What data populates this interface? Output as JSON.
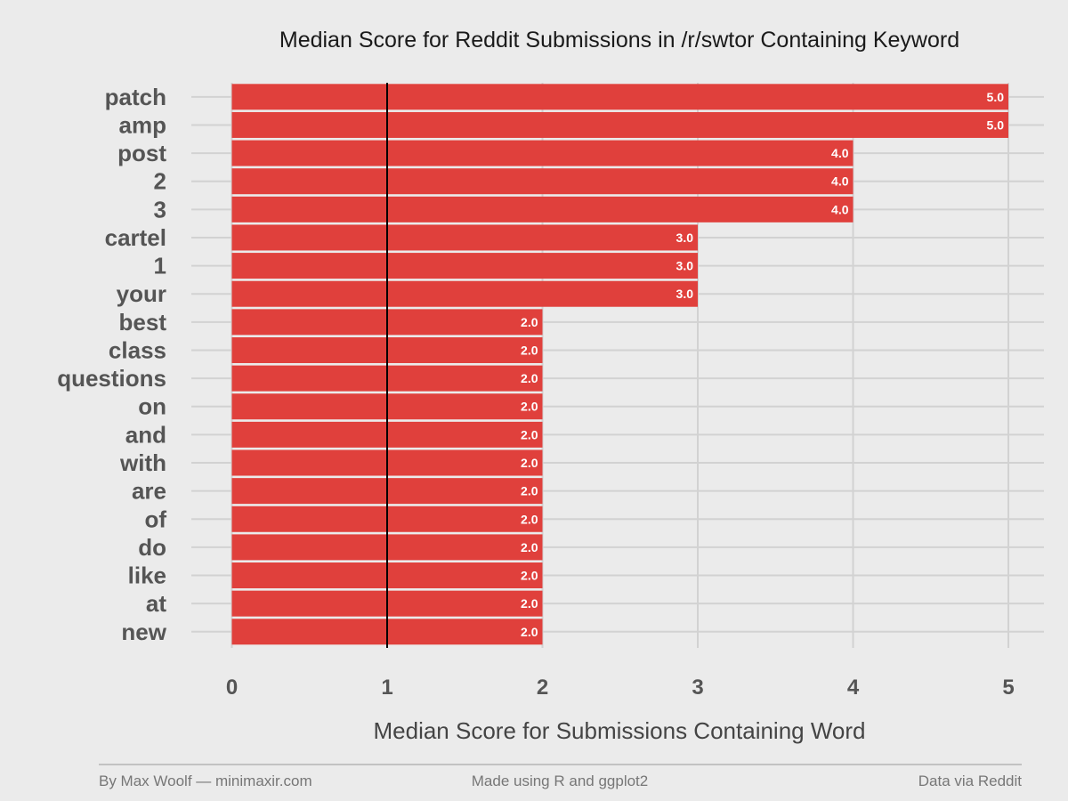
{
  "chart_data": {
    "type": "bar",
    "orientation": "horizontal",
    "title": "Median Score for Reddit Submissions in /r/swtor Containing Keyword",
    "xlabel": "Median Score for Submissions Containing Word",
    "ylabel": "",
    "categories": [
      "patch",
      "amp",
      "post",
      "2",
      "3",
      "cartel",
      "1",
      "your",
      "best",
      "class",
      "questions",
      "on",
      "and",
      "with",
      "are",
      "of",
      "do",
      "like",
      "at",
      "new"
    ],
    "values": [
      5,
      5,
      4,
      4,
      4,
      3,
      3,
      3,
      2,
      2,
      2,
      2,
      2,
      2,
      2,
      2,
      2,
      2,
      2,
      2
    ],
    "value_labels": [
      "5.0",
      "5.0",
      "4.0",
      "4.0",
      "4.0",
      "3.0",
      "3.0",
      "3.0",
      "2.0",
      "2.0",
      "2.0",
      "2.0",
      "2.0",
      "2.0",
      "2.0",
      "2.0",
      "2.0",
      "2.0",
      "2.0",
      "2.0"
    ],
    "xlim": [
      0,
      5
    ],
    "xticks": [
      0,
      1,
      2,
      3,
      4,
      5
    ],
    "reference_line": 1,
    "grid": true,
    "bar_color": "#e0403c",
    "reference_line_color": "#000000"
  },
  "footer": {
    "left": "By Max Woolf — minimaxir.com",
    "center": "Made using R and ggplot2",
    "right": "Data via Reddit"
  }
}
